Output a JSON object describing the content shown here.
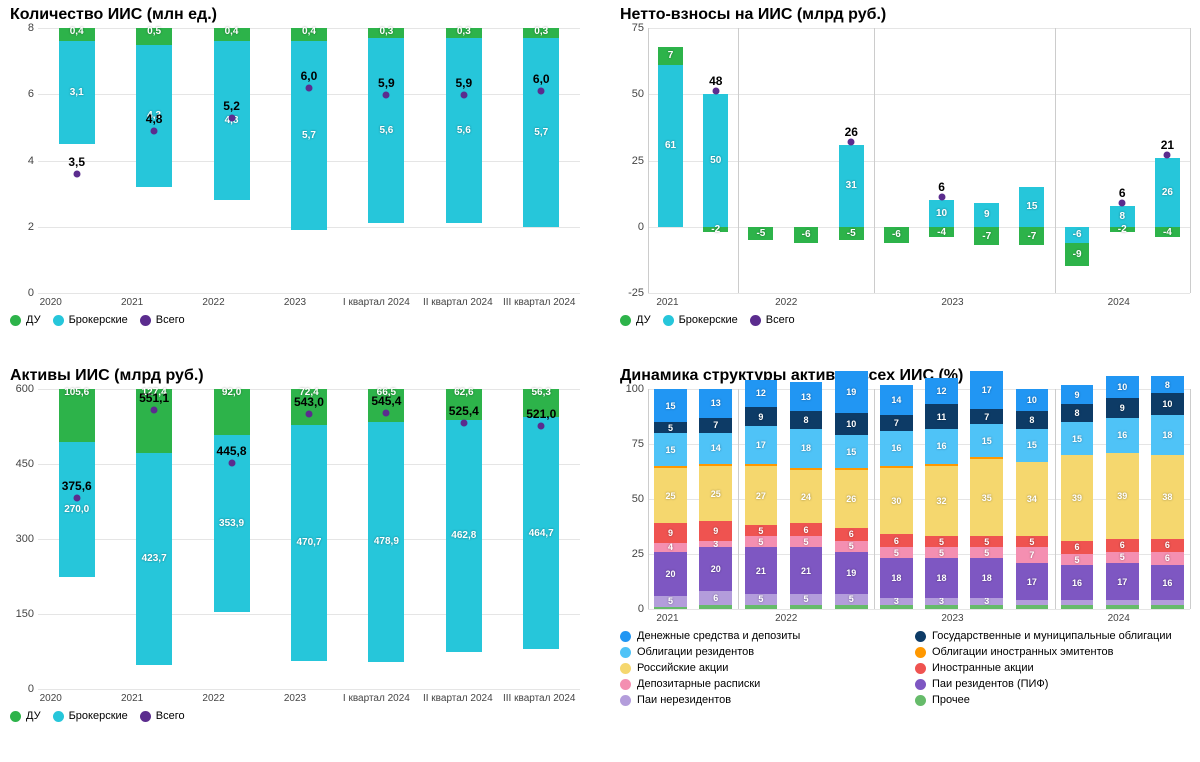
{
  "colors": {
    "du": "#2db34a",
    "brok": "#26c6da",
    "total": "#5b2c8e",
    "grid": "#e5e5e5",
    "bg": "#ffffff",
    "cash": "#2196f3",
    "gov_bond": "#0d3b66",
    "res_bond": "#4fc3f7",
    "for_emit": "#ff9800",
    "rus_stock": "#f5d76e",
    "for_stock": "#ef5350",
    "dep_rec": "#f48fb1",
    "pif": "#7e57c2",
    "nonres": "#b39ddb",
    "other": "#66bb6a"
  },
  "chart1": {
    "title": "Количество ИИС (млн ед.)",
    "type": "stacked-bar",
    "ylim": [
      0,
      8
    ],
    "yticks": [
      0,
      2,
      4,
      6,
      8
    ],
    "categories": [
      "2020",
      "2021",
      "2022",
      "2023",
      "I квартал 2024",
      "II квартал 2024",
      "III квартал 2024"
    ],
    "series": {
      "brok": [
        3.1,
        4.3,
        4.8,
        5.7,
        5.6,
        5.6,
        5.7
      ],
      "du": [
        0.4,
        0.5,
        0.4,
        0.4,
        0.3,
        0.3,
        0.3
      ]
    },
    "totals": [
      "3,5",
      "4,8",
      "5,2",
      "6,0",
      "5,9",
      "5,9",
      "6,0"
    ],
    "legend": [
      {
        "k": "du",
        "t": "ДУ"
      },
      {
        "k": "brok",
        "t": "Брокерские"
      },
      {
        "k": "total",
        "t": "Всего"
      }
    ]
  },
  "chart2": {
    "title": "Нетто-взносы на ИИС (млрд руб.)",
    "type": "stacked-bar-zero",
    "ylim": [
      -25,
      75
    ],
    "yticks": [
      -25,
      0,
      25,
      50,
      75
    ],
    "year_groups": [
      "2021",
      "2022",
      "2023",
      "2024"
    ],
    "bars": [
      {
        "brok": 61,
        "du": 7,
        "tot": null,
        "g": 0
      },
      {
        "brok": 50,
        "du": -2,
        "tot": "48",
        "g": 0
      },
      {
        "brok": null,
        "du": -5,
        "tot": null,
        "g": 1
      },
      {
        "brok": null,
        "du": -6,
        "tot": null,
        "g": 1
      },
      {
        "brok": 31,
        "du": -5,
        "tot": "26",
        "g": 1
      },
      {
        "brok": null,
        "du": -6,
        "tot": null,
        "g": 2
      },
      {
        "brok": 10,
        "du": -4,
        "tot": "6",
        "g": 2
      },
      {
        "brok": 9,
        "du": -7,
        "tot": null,
        "g": 2
      },
      {
        "brok": 15,
        "du": -7,
        "tot": null,
        "g": 2
      },
      {
        "brok": -6,
        "du": -9,
        "tot": null,
        "g": 3
      },
      {
        "brok": 8,
        "du": -2,
        "tot": "6",
        "g": 3
      },
      {
        "brok": 26,
        "du": -4,
        "tot": "21",
        "g": 3
      }
    ],
    "legend": [
      {
        "k": "du",
        "t": "ДУ"
      },
      {
        "k": "brok",
        "t": "Брокерские"
      },
      {
        "k": "total",
        "t": "Всего"
      }
    ]
  },
  "chart3": {
    "title": "Активы ИИС (млрд руб.)",
    "type": "stacked-bar",
    "ylim": [
      0,
      600
    ],
    "yticks": [
      0,
      150,
      300,
      450,
      600
    ],
    "categories": [
      "2020",
      "2021",
      "2022",
      "2023",
      "I квартал 2024",
      "II квартал 2024",
      "III квартал 2024"
    ],
    "series": {
      "brok": [
        270.0,
        423.7,
        353.9,
        470.7,
        478.9,
        462.8,
        464.7
      ],
      "du": [
        105.6,
        127.4,
        92.0,
        72.4,
        66.5,
        62.6,
        56.3
      ]
    },
    "seg_labels": {
      "brok": [
        "270,0",
        "423,7",
        "353,9",
        "470,7",
        "478,9",
        "462,8",
        "464,7"
      ],
      "du": [
        "105,6",
        "127,4",
        "92,0",
        "72,4",
        "66,5",
        "62,6",
        "56,3"
      ]
    },
    "totals": [
      "375,6",
      "551,1",
      "445,8",
      "543,0",
      "545,4",
      "525,4",
      "521,0"
    ],
    "legend": [
      {
        "k": "du",
        "t": "ДУ"
      },
      {
        "k": "brok",
        "t": "Брокерские"
      },
      {
        "k": "total",
        "t": "Всего"
      }
    ]
  },
  "chart4": {
    "title": "Динамика структуры активов всех ИИС (%)",
    "type": "stacked-bar-100",
    "ylim": [
      0,
      100
    ],
    "yticks": [
      0,
      25,
      50,
      75,
      100
    ],
    "year_groups": [
      "2021",
      "2022",
      "2023",
      "2024"
    ],
    "periods": [
      0,
      0,
      1,
      1,
      1,
      2,
      2,
      2,
      2,
      3,
      3,
      3
    ],
    "order": [
      "other",
      "nonres",
      "pif",
      "dep_rec",
      "for_stock",
      "rus_stock",
      "for_emit",
      "res_bond",
      "gov_bond",
      "cash"
    ],
    "data": [
      {
        "cash": 15,
        "gov_bond": 5,
        "res_bond": 15,
        "for_emit": 1,
        "rus_stock": 25,
        "for_stock": 9,
        "dep_rec": 4,
        "pif": 20,
        "nonres": 5,
        "other": 1
      },
      {
        "cash": 13,
        "gov_bond": 7,
        "res_bond": 14,
        "for_emit": 1,
        "rus_stock": 25,
        "for_stock": 9,
        "dep_rec": 3,
        "pif": 20,
        "nonres": 6,
        "other": 2
      },
      {
        "cash": 12,
        "gov_bond": 9,
        "res_bond": 17,
        "for_emit": 1,
        "rus_stock": 27,
        "for_stock": 5,
        "dep_rec": 5,
        "pif": 21,
        "nonres": 5,
        "other": 2
      },
      {
        "cash": 13,
        "gov_bond": 8,
        "res_bond": 18,
        "for_emit": 1,
        "rus_stock": 24,
        "for_stock": 6,
        "dep_rec": 5,
        "pif": 21,
        "nonres": 5,
        "other": 2
      },
      {
        "cash": 19,
        "gov_bond": 10,
        "res_bond": 15,
        "for_emit": 1,
        "rus_stock": 26,
        "for_stock": 6,
        "dep_rec": 5,
        "pif": 19,
        "nonres": 5,
        "other": 2
      },
      {
        "cash": 14,
        "gov_bond": 7,
        "res_bond": 16,
        "for_emit": 1,
        "rus_stock": 30,
        "for_stock": 6,
        "dep_rec": 5,
        "pif": 18,
        "nonres": 3,
        "other": 2
      },
      {
        "cash": 12,
        "gov_bond": 11,
        "res_bond": 16,
        "for_emit": 1,
        "rus_stock": 32,
        "for_stock": 5,
        "dep_rec": 5,
        "pif": 18,
        "nonres": 3,
        "other": 2
      },
      {
        "cash": 17,
        "gov_bond": 7,
        "res_bond": 15,
        "for_emit": 1,
        "rus_stock": 35,
        "for_stock": 5,
        "dep_rec": 5,
        "pif": 18,
        "nonres": 3,
        "other": 2
      },
      {
        "cash": 10,
        "gov_bond": 8,
        "res_bond": 15,
        "for_emit": 0,
        "rus_stock": 34,
        "for_stock": 5,
        "dep_rec": 7,
        "pif": 17,
        "nonres": 2,
        "other": 2
      },
      {
        "cash": 9,
        "gov_bond": 8,
        "res_bond": 15,
        "for_emit": 0,
        "rus_stock": 39,
        "for_stock": 6,
        "dep_rec": 5,
        "pif": 16,
        "nonres": 2,
        "other": 2
      },
      {
        "cash": 10,
        "gov_bond": 9,
        "res_bond": 16,
        "for_emit": 0,
        "rus_stock": 39,
        "for_stock": 6,
        "dep_rec": 5,
        "pif": 17,
        "nonres": 2,
        "other": 2
      },
      {
        "cash": 8,
        "gov_bond": 10,
        "res_bond": 18,
        "for_emit": 0,
        "rus_stock": 38,
        "for_stock": 6,
        "dep_rec": 6,
        "pif": 16,
        "nonres": 2,
        "other": 2
      }
    ],
    "legend": [
      {
        "k": "cash",
        "t": "Денежные средства и депозиты"
      },
      {
        "k": "gov_bond",
        "t": "Государственные и муниципальные облигации"
      },
      {
        "k": "res_bond",
        "t": "Облигации резидентов"
      },
      {
        "k": "for_emit",
        "t": "Облигации иностранных эмитентов"
      },
      {
        "k": "rus_stock",
        "t": "Российские акции"
      },
      {
        "k": "for_stock",
        "t": "Иностранные акции"
      },
      {
        "k": "dep_rec",
        "t": "Депозитарные расписки"
      },
      {
        "k": "pif",
        "t": "Паи резидентов (ПИФ)"
      },
      {
        "k": "nonres",
        "t": "Паи нерезидентов"
      },
      {
        "k": "other",
        "t": "Прочее"
      }
    ]
  }
}
